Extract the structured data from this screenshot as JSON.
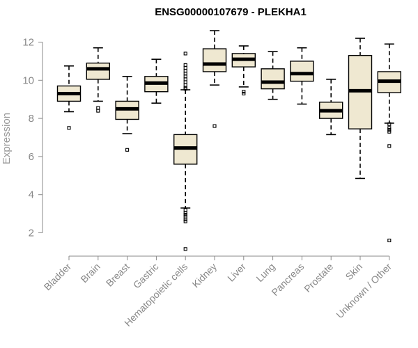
{
  "chart_data": {
    "type": "boxplot",
    "title": "ENSG00000107679 - PLEKHA1",
    "xlabel": "",
    "ylabel": "Expression",
    "ylim": [
      1,
      12.7
    ],
    "yticks": [
      2,
      4,
      6,
      8,
      10,
      12
    ],
    "box_color": "#efe8d1",
    "line_color": "#000000",
    "axis_color": "#888888",
    "categories": [
      "Bladder",
      "Brain",
      "Breast",
      "Gastric",
      "Hematopoietic cells",
      "Kidney",
      "Liver",
      "Lung",
      "Pancreas",
      "Prostate",
      "Skin",
      "Unknown / Other"
    ],
    "boxes": [
      {
        "name": "Bladder",
        "whisker_low": 8.35,
        "q1": 8.9,
        "median": 9.3,
        "q3": 9.7,
        "whisker_high": 10.75,
        "outliers": [
          7.5
        ]
      },
      {
        "name": "Brain",
        "whisker_low": 8.9,
        "q1": 10.05,
        "median": 10.6,
        "q3": 10.9,
        "whisker_high": 11.7,
        "outliers": [
          8.55,
          8.4
        ]
      },
      {
        "name": "Breast",
        "whisker_low": 7.2,
        "q1": 7.95,
        "median": 8.5,
        "q3": 8.9,
        "whisker_high": 10.2,
        "outliers": [
          6.35
        ]
      },
      {
        "name": "Gastric",
        "whisker_low": 8.8,
        "q1": 9.4,
        "median": 9.85,
        "q3": 10.2,
        "whisker_high": 11.1,
        "outliers": []
      },
      {
        "name": "Hematopoietic cells",
        "whisker_low": 3.3,
        "q1": 5.6,
        "median": 6.45,
        "q3": 7.15,
        "whisker_high": 9.5,
        "outliers": [
          11.4,
          10.8,
          10.65,
          10.5,
          10.35,
          10.2,
          10.05,
          9.9,
          9.75,
          9.6,
          9.55,
          3.2,
          3.05,
          2.95,
          2.85,
          2.7,
          2.6,
          1.15
        ]
      },
      {
        "name": "Kidney",
        "whisker_low": 9.75,
        "q1": 10.45,
        "median": 10.85,
        "q3": 11.65,
        "whisker_high": 12.6,
        "outliers": [
          7.6
        ]
      },
      {
        "name": "Liver",
        "whisker_low": 9.65,
        "q1": 10.7,
        "median": 11.1,
        "q3": 11.4,
        "whisker_high": 11.8,
        "outliers": [
          9.4,
          9.3
        ]
      },
      {
        "name": "Lung",
        "whisker_low": 9.0,
        "q1": 9.55,
        "median": 9.9,
        "q3": 10.6,
        "whisker_high": 11.5,
        "outliers": []
      },
      {
        "name": "Pancreas",
        "whisker_low": 8.75,
        "q1": 9.95,
        "median": 10.35,
        "q3": 11.0,
        "whisker_high": 11.7,
        "outliers": []
      },
      {
        "name": "Prostate",
        "whisker_low": 7.15,
        "q1": 8.0,
        "median": 8.4,
        "q3": 8.85,
        "whisker_high": 10.05,
        "outliers": []
      },
      {
        "name": "Skin",
        "whisker_low": 4.85,
        "q1": 7.45,
        "median": 9.45,
        "q3": 11.3,
        "whisker_high": 12.2,
        "outliers": []
      },
      {
        "name": "Unknown / Other",
        "whisker_low": 7.75,
        "q1": 9.35,
        "median": 9.95,
        "q3": 10.45,
        "whisker_high": 11.9,
        "outliers": [
          7.7,
          7.5,
          7.4,
          7.3,
          6.55,
          1.6
        ]
      }
    ]
  }
}
